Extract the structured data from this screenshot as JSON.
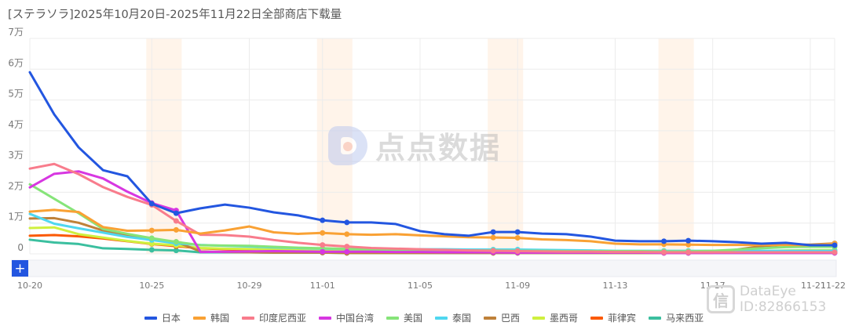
{
  "title": "[ステラソラ]2025年10月20日-2025年11月22日全部商店下载量",
  "watermarks": {
    "center": "点点数据",
    "corner_brand": "DataEye",
    "corner_id": "ID:82866153",
    "corner_icon": "信"
  },
  "zoom_control": {
    "plus_label": "+"
  },
  "chart_data": {
    "type": "line",
    "title": "[ステラソラ]2025年10月20日-2025年11月22日全部商店下载量",
    "xlabel": "",
    "ylabel": "",
    "ylim": [
      0,
      70000
    ],
    "yticks": [
      {
        "value": 0,
        "label": "0"
      },
      {
        "value": 10000,
        "label": "1万"
      },
      {
        "value": 20000,
        "label": "2万"
      },
      {
        "value": 30000,
        "label": "3万"
      },
      {
        "value": 40000,
        "label": "4万"
      },
      {
        "value": 50000,
        "label": "5万"
      },
      {
        "value": 60000,
        "label": "6万"
      },
      {
        "value": 70000,
        "label": "7万"
      }
    ],
    "xtick_labels": [
      {
        "index": 0,
        "label": "10-20"
      },
      {
        "index": 5,
        "label": "10-25"
      },
      {
        "index": 9,
        "label": "10-29"
      },
      {
        "index": 12,
        "label": "11-01"
      },
      {
        "index": 16,
        "label": "11-05"
      },
      {
        "index": 20,
        "label": "11-09"
      },
      {
        "index": 24,
        "label": "11-13"
      },
      {
        "index": 28,
        "label": "11-17"
      },
      {
        "index": 32,
        "label": "11-21"
      },
      {
        "index": 33,
        "label": "11-22"
      }
    ],
    "grid": true,
    "legend_position": "bottom",
    "weekend_bands": [
      [
        5,
        6
      ],
      [
        12,
        13
      ],
      [
        19,
        20
      ],
      [
        26,
        27
      ]
    ],
    "categories": [
      "10-20",
      "10-21",
      "10-22",
      "10-23",
      "10-24",
      "10-25",
      "10-26",
      "10-27",
      "10-28",
      "10-29",
      "10-30",
      "10-31",
      "11-01",
      "11-02",
      "11-03",
      "11-04",
      "11-05",
      "11-06",
      "11-07",
      "11-08",
      "11-09",
      "11-10",
      "11-11",
      "11-12",
      "11-13",
      "11-14",
      "11-15",
      "11-16",
      "11-17",
      "11-18",
      "11-19",
      "11-20",
      "11-21",
      "11-22"
    ],
    "series": [
      {
        "name": "日本",
        "color": "#2356e0",
        "values": [
          59000,
          45300,
          34600,
          27200,
          25200,
          16300,
          13200,
          14800,
          16000,
          15000,
          13500,
          12500,
          10900,
          10200,
          10200,
          9700,
          7400,
          6400,
          5900,
          7100,
          7100,
          6600,
          6400,
          5600,
          4300,
          4100,
          4100,
          4300,
          4100,
          3800,
          3300,
          3600,
          2800,
          2800
        ]
      },
      {
        "name": "韩国",
        "color": "#f9a134",
        "values": [
          13700,
          14300,
          13600,
          8700,
          7500,
          7600,
          7800,
          6600,
          7600,
          8900,
          7000,
          6500,
          6800,
          6400,
          6200,
          6400,
          6000,
          5700,
          5400,
          5300,
          5200,
          4700,
          4500,
          4100,
          3300,
          3100,
          3100,
          3000,
          2900,
          2900,
          2900,
          2900,
          2800,
          3300
        ]
      },
      {
        "name": "印度尼西亚",
        "color": "#f87c8c",
        "values": [
          27700,
          29200,
          25900,
          21700,
          18500,
          15900,
          10700,
          6200,
          6100,
          5600,
          4500,
          3600,
          2900,
          2400,
          1900,
          1700,
          1500,
          1300,
          1100,
          1000,
          900,
          800,
          700,
          700,
          600,
          600,
          500,
          500,
          500,
          500,
          500,
          500,
          500,
          500
        ]
      },
      {
        "name": "中国台湾",
        "color": "#d737e1",
        "values": [
          21600,
          26000,
          26800,
          24500,
          20200,
          16500,
          14100,
          600,
          700,
          800,
          900,
          800,
          700,
          700,
          700,
          600,
          600,
          500,
          500,
          500,
          400,
          400,
          400,
          400,
          400,
          400,
          300,
          300,
          300,
          300,
          300,
          300,
          300,
          300
        ]
      },
      {
        "name": "美国",
        "color": "#86e479",
        "values": [
          22600,
          17900,
          13200,
          8100,
          6500,
          5100,
          3900,
          2800,
          2700,
          2600,
          2300,
          2000,
          1800,
          1600,
          1500,
          1400,
          1300,
          1200,
          1100,
          1100,
          1000,
          1000,
          900,
          900,
          900,
          900,
          800,
          800,
          1000,
          1400,
          1800,
          2200,
          2300,
          2300
        ]
      },
      {
        "name": "泰国",
        "color": "#4fd7f0",
        "values": [
          13000,
          9800,
          8300,
          6900,
          5500,
          4500,
          3400,
          2900,
          2600,
          2400,
          2100,
          1900,
          1700,
          1600,
          1500,
          1500,
          1500,
          1500,
          1400,
          1400,
          1400,
          1300,
          1200,
          1100,
          1000,
          1000,
          1000,
          1000,
          1000,
          1000,
          1000,
          1000,
          1000,
          1000
        ]
      },
      {
        "name": "巴西",
        "color": "#bf8139",
        "values": [
          11500,
          11600,
          10100,
          7600,
          5900,
          4600,
          3900,
          800,
          600,
          500,
          400,
          400,
          400,
          300,
          300,
          300,
          300,
          300,
          300,
          300,
          300,
          300,
          300,
          300,
          300,
          300,
          300,
          300,
          300,
          1400,
          2500,
          3000,
          3000,
          3400
        ]
      },
      {
        "name": "墨西哥",
        "color": "#cff03e",
        "values": [
          8400,
          8600,
          6400,
          5300,
          4200,
          3300,
          2800,
          1900,
          1700,
          1600,
          1400,
          1200,
          1000,
          900,
          800,
          800,
          700,
          700,
          700,
          600,
          600,
          600,
          600,
          500,
          500,
          500,
          500,
          500,
          500,
          700,
          900,
          1100,
          1200,
          1200
        ]
      },
      {
        "name": "菲律宾",
        "color": "#fb5a06",
        "values": [
          5900,
          6100,
          5700,
          5000,
          4100,
          3200,
          2500,
          1800,
          1500,
          1200,
          1000,
          900,
          800,
          700,
          700,
          600,
          600,
          600,
          500,
          500,
          500,
          500,
          500,
          500,
          500,
          500,
          500,
          500,
          500,
          500,
          600,
          600,
          600,
          600
        ]
      },
      {
        "name": "马来西亚",
        "color": "#3bbf9f",
        "values": [
          4600,
          3700,
          3200,
          1800,
          1600,
          1300,
          1100,
          500,
          500,
          500,
          400,
          400,
          400,
          300,
          300,
          300,
          300,
          300,
          300,
          300,
          300,
          300,
          300,
          300,
          300,
          300,
          300,
          300,
          300,
          300,
          300,
          300,
          300,
          300
        ]
      }
    ]
  }
}
